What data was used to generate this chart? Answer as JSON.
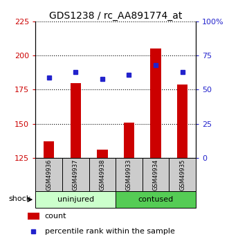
{
  "title": "GDS1238 / rc_AA891774_at",
  "samples": [
    "GSM49936",
    "GSM49937",
    "GSM49938",
    "GSM49933",
    "GSM49934",
    "GSM49935"
  ],
  "count_values": [
    137,
    180,
    131,
    151,
    205,
    179
  ],
  "percentile_values": [
    59,
    63,
    58,
    61,
    68,
    63
  ],
  "ylim_left": [
    125,
    225
  ],
  "ylim_right": [
    0,
    100
  ],
  "yticks_left": [
    125,
    150,
    175,
    200,
    225
  ],
  "yticks_right": [
    0,
    25,
    50,
    75,
    100
  ],
  "ytick_labels_right": [
    "0",
    "25",
    "50",
    "75",
    "100%"
  ],
  "bar_color": "#cc0000",
  "dot_color": "#2222cc",
  "group1_label": "uninjured",
  "group2_label": "contused",
  "group1_bg": "#ccffcc",
  "group2_bg": "#55cc55",
  "sample_bg": "#cccccc",
  "shock_label": "shock",
  "legend_count": "count",
  "legend_percentile": "percentile rank within the sample",
  "title_fontsize": 10,
  "tick_fontsize": 8,
  "bar_width": 0.4
}
